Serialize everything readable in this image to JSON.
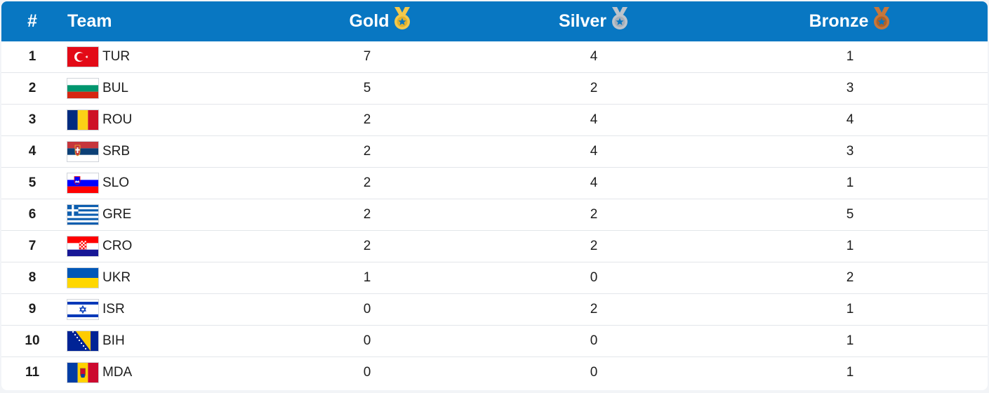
{
  "header": {
    "rank": "#",
    "team": "Team",
    "gold": "Gold",
    "silver": "Silver",
    "bronze": "Bronze"
  },
  "colors": {
    "header_bg": "#0877c2",
    "gold": "#f2c94c",
    "silver": "#bcc3cb",
    "bronze": "#c7773b"
  },
  "rows": [
    {
      "rank": "1",
      "team": "TUR",
      "flag": "tur",
      "gold": "7",
      "silver": "4",
      "bronze": "1"
    },
    {
      "rank": "2",
      "team": "BUL",
      "flag": "bul",
      "gold": "5",
      "silver": "2",
      "bronze": "3"
    },
    {
      "rank": "3",
      "team": "ROU",
      "flag": "rou",
      "gold": "2",
      "silver": "4",
      "bronze": "4"
    },
    {
      "rank": "4",
      "team": "SRB",
      "flag": "srb",
      "gold": "2",
      "silver": "4",
      "bronze": "3"
    },
    {
      "rank": "5",
      "team": "SLO",
      "flag": "slo",
      "gold": "2",
      "silver": "4",
      "bronze": "1"
    },
    {
      "rank": "6",
      "team": "GRE",
      "flag": "gre",
      "gold": "2",
      "silver": "2",
      "bronze": "5"
    },
    {
      "rank": "7",
      "team": "CRO",
      "flag": "cro",
      "gold": "2",
      "silver": "2",
      "bronze": "1"
    },
    {
      "rank": "8",
      "team": "UKR",
      "flag": "ukr",
      "gold": "1",
      "silver": "0",
      "bronze": "2"
    },
    {
      "rank": "9",
      "team": "ISR",
      "flag": "isr",
      "gold": "0",
      "silver": "2",
      "bronze": "1"
    },
    {
      "rank": "10",
      "team": "BIH",
      "flag": "bih",
      "gold": "0",
      "silver": "0",
      "bronze": "1"
    },
    {
      "rank": "11",
      "team": "MDA",
      "flag": "mda",
      "gold": "0",
      "silver": "0",
      "bronze": "1"
    }
  ]
}
